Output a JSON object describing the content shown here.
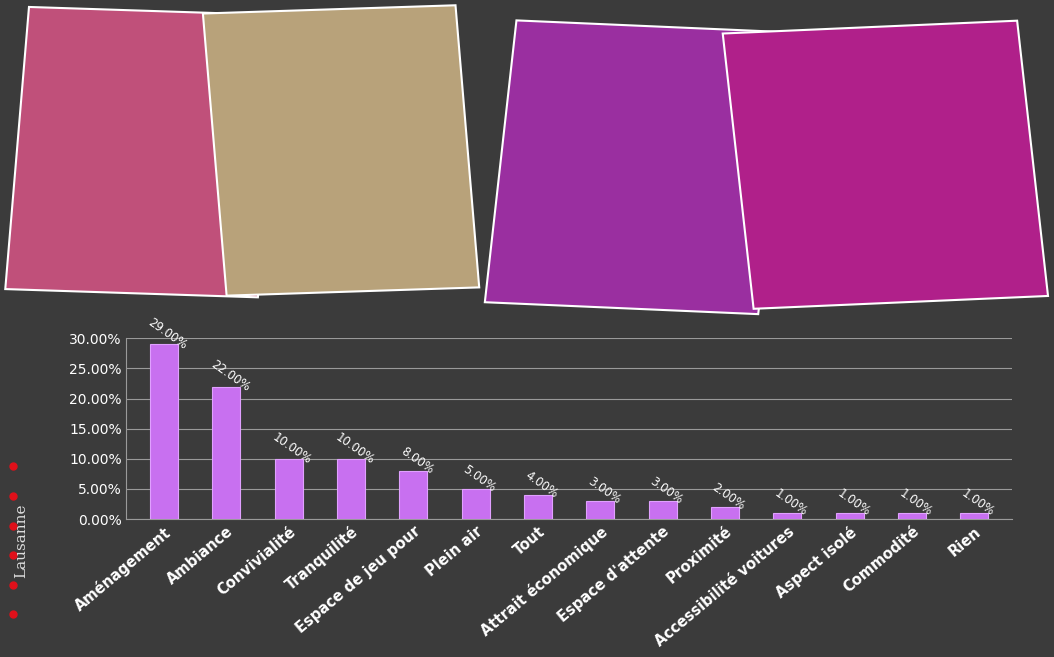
{
  "chart_data": {
    "type": "bar",
    "side_text": "Lausanne",
    "categories": [
      "Aménagement",
      "Ambiance",
      "Convivialité",
      "Tranquilité",
      "Espace de jeu pour",
      "Plein air",
      "Tout",
      "Attrait économique",
      "Espace d'attente",
      "Proximité",
      "Accessibilité voitures",
      "Aspect isolé",
      "Commodité",
      "Rien"
    ],
    "values": [
      29,
      22,
      10,
      10,
      8,
      5,
      4,
      3,
      3,
      2,
      1,
      1,
      1,
      1
    ],
    "value_labels": [
      "29.00%",
      "22.00%",
      "10.00%",
      "10.00%",
      "8.00%",
      "5.00%",
      "4.00%",
      "3.00%",
      "3.00%",
      "2.00%",
      "1.00%",
      "1.00%",
      "1.00%",
      "1.00%"
    ],
    "data_labels": true,
    "color": "#c870f0",
    "ylim": [
      0,
      30
    ],
    "yticks": [
      {
        "value": 0,
        "label": "0.00%"
      },
      {
        "value": 5,
        "label": "5.00%"
      },
      {
        "value": 10,
        "label": "10.00%"
      },
      {
        "value": 15,
        "label": "15.00%"
      },
      {
        "value": 20,
        "label": "20.00%"
      },
      {
        "value": 25,
        "label": "25.00%"
      },
      {
        "value": 30,
        "label": "30.00%"
      }
    ],
    "grid": true
  }
}
